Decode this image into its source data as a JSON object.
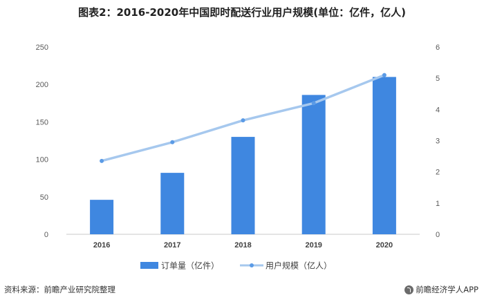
{
  "title": "图表2：2016-2020年中国即时配送行业用户规模(单位：亿件，亿人)",
  "footer": {
    "source": "资料来源：前瞻产业研究院整理",
    "brand": "前瞻经济学人APP"
  },
  "colors": {
    "bar": "#3f87e0",
    "line": "#a6c8ee",
    "marker": "#5b9be6",
    "axis": "#c8c8c8"
  },
  "chart_data": {
    "type": "bar",
    "categories": [
      "2016",
      "2017",
      "2018",
      "2019",
      "2020"
    ],
    "series": [
      {
        "name": "订单量（亿件）",
        "type": "bar",
        "axis": "left",
        "values": [
          46,
          82,
          130,
          186,
          210
        ]
      },
      {
        "name": "用户规模（亿人）",
        "type": "line",
        "axis": "right",
        "values": [
          2.35,
          2.95,
          3.65,
          4.2,
          5.1
        ]
      }
    ],
    "ylim": [
      0,
      250
    ],
    "yticks": [
      0,
      50,
      100,
      150,
      200,
      250
    ],
    "y2lim": [
      0,
      6
    ],
    "y2ticks": [
      0,
      1,
      2,
      3,
      4,
      5,
      6
    ],
    "grid": false,
    "legend": "bottom"
  }
}
